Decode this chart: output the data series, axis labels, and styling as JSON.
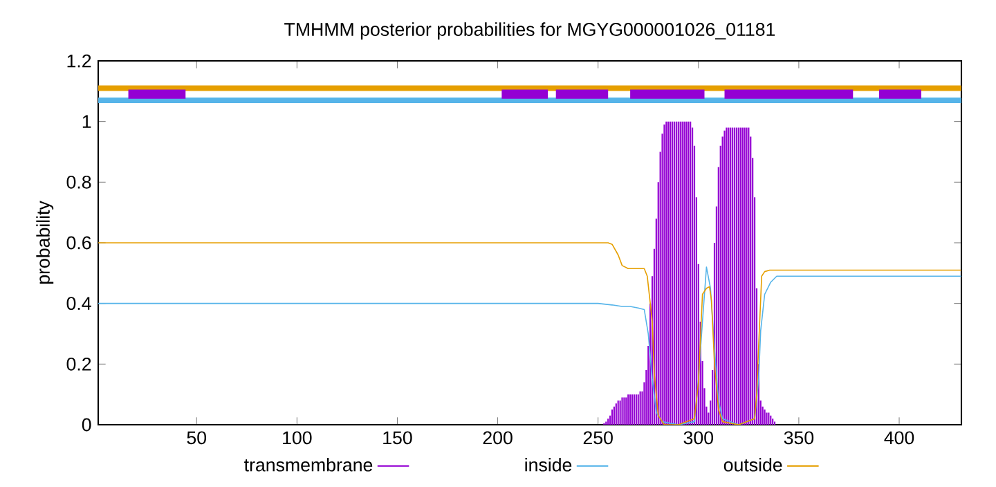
{
  "chart_data": {
    "type": "line",
    "title": "TMHMM posterior probabilities for MGYG000001026_01181",
    "ylabel": "probability",
    "xlim": [
      1,
      431
    ],
    "xticks": [
      50,
      100,
      150,
      200,
      250,
      300,
      350,
      400
    ],
    "ylim": [
      0,
      1.2
    ],
    "yticks": [
      0,
      0.2,
      0.4,
      0.6,
      0.8,
      1,
      1.2
    ],
    "grid": false,
    "legend": "bottom",
    "marker": "none",
    "line_style": "solid",
    "series": [
      {
        "name": "transmembrane",
        "type": "bar",
        "color": "#9400d3",
        "x": [
          253,
          254,
          255,
          256,
          257,
          258,
          259,
          260,
          261,
          262,
          263,
          264,
          265,
          266,
          267,
          268,
          269,
          270,
          271,
          272,
          273,
          274,
          275,
          276,
          277,
          278,
          279,
          280,
          281,
          282,
          283,
          284,
          285,
          286,
          287,
          288,
          289,
          290,
          291,
          292,
          293,
          294,
          295,
          296,
          297,
          298,
          299,
          300,
          301,
          302,
          303,
          304,
          305,
          306,
          307,
          308,
          309,
          310,
          311,
          312,
          313,
          314,
          315,
          316,
          317,
          318,
          319,
          320,
          321,
          322,
          323,
          324,
          325,
          326,
          327,
          328,
          329,
          330,
          331,
          332,
          333,
          334,
          335,
          336,
          337,
          338
        ],
        "values": [
          0.005,
          0.01,
          0.02,
          0.03,
          0.05,
          0.06,
          0.07,
          0.08,
          0.08,
          0.09,
          0.09,
          0.09,
          0.1,
          0.1,
          0.1,
          0.1,
          0.1,
          0.1,
          0.11,
          0.11,
          0.14,
          0.18,
          0.26,
          0.4,
          0.49,
          0.58,
          0.68,
          0.8,
          0.9,
          0.96,
          0.99,
          1,
          1,
          1,
          1,
          1,
          1,
          1,
          1,
          1,
          1,
          1,
          1,
          1,
          0.98,
          0.92,
          0.75,
          0.53,
          0.34,
          0.21,
          0.12,
          0.06,
          0.04,
          0.08,
          0.18,
          0.6,
          0.72,
          0.85,
          0.92,
          0.95,
          0.97,
          0.98,
          0.98,
          0.98,
          0.98,
          0.98,
          0.98,
          0.98,
          0.98,
          0.98,
          0.98,
          0.98,
          0.98,
          0.95,
          0.88,
          0.75,
          0.45,
          0.2,
          0.08,
          0.06,
          0.05,
          0.04,
          0.04,
          0.03,
          0.02,
          0.01
        ]
      },
      {
        "name": "inside",
        "color": "#56b4e9",
        "x": [
          1,
          250,
          257,
          262,
          266,
          270,
          273,
          275,
          277,
          279,
          282,
          290,
          298,
          300,
          302,
          304,
          306,
          308,
          310,
          312,
          320,
          328,
          330,
          331,
          333,
          336,
          339,
          345,
          431
        ],
        "values": [
          0.4,
          0.4,
          0.395,
          0.39,
          0.39,
          0.385,
          0.38,
          0.3,
          0.15,
          0.04,
          0.01,
          0,
          0.01,
          0.15,
          0.34,
          0.52,
          0.45,
          0.25,
          0.08,
          0.02,
          0,
          0.02,
          0.15,
          0.31,
          0.43,
          0.47,
          0.49,
          0.49,
          0.49
        ]
      },
      {
        "name": "outside",
        "color": "#e69f00",
        "x": [
          1,
          255,
          257,
          260,
          262,
          265,
          270,
          273,
          274.5,
          276,
          277,
          278,
          280,
          283,
          290,
          298,
          300,
          302,
          304,
          305.5,
          306.5,
          308,
          310,
          312,
          320,
          328,
          329,
          330,
          331.5,
          333,
          335.5,
          340,
          431
        ],
        "values": [
          0.6,
          0.6,
          0.595,
          0.56,
          0.525,
          0.515,
          0.515,
          0.515,
          0.49,
          0.4,
          0.34,
          0.17,
          0.03,
          0,
          0,
          0.02,
          0.14,
          0.43,
          0.45,
          0.455,
          0.41,
          0.2,
          0.05,
          0.01,
          0,
          0.02,
          0.1,
          0.26,
          0.49,
          0.505,
          0.51,
          0.51,
          0.51
        ]
      },
      {
        "color": "#e69f00",
        "x": [
          1,
          431
        ],
        "values": [
          1.11,
          1.11
        ]
      },
      {
        "color": "#56b4e9",
        "x": [
          1,
          431
        ],
        "values": [
          1.07,
          1.07
        ]
      },
      {
        "color": "#9400d3",
        "x": [
          16,
          44.5
        ],
        "values": [
          1.09,
          1.09
        ]
      },
      {
        "color": "#9400d3",
        "x": [
          202,
          225
        ],
        "values": [
          1.09,
          1.09
        ]
      },
      {
        "color": "#9400d3",
        "x": [
          229,
          255
        ],
        "values": [
          1.09,
          1.09
        ]
      },
      {
        "color": "#9400d3",
        "x": [
          266,
          303
        ],
        "values": [
          1.09,
          1.09
        ]
      },
      {
        "color": "#9400d3",
        "x": [
          313,
          377
        ],
        "values": [
          1.09,
          1.09
        ]
      },
      {
        "color": "#9400d3",
        "x": [
          390,
          411
        ],
        "values": [
          1.09,
          1.09
        ]
      }
    ]
  }
}
